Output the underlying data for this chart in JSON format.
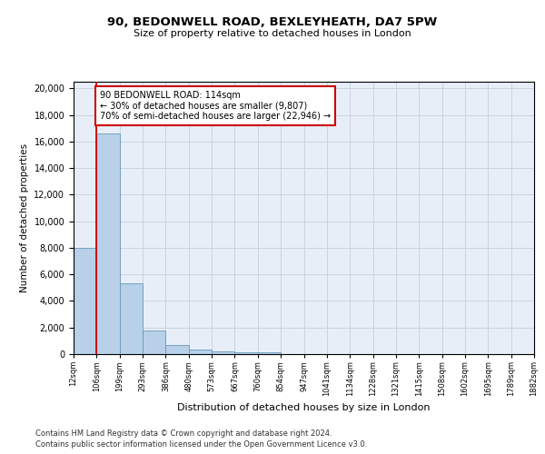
{
  "title_line1": "90, BEDONWELL ROAD, BEXLEYHEATH, DA7 5PW",
  "title_line2": "Size of property relative to detached houses in London",
  "xlabel": "Distribution of detached houses by size in London",
  "ylabel": "Number of detached properties",
  "bar_values": [
    8000,
    16600,
    5300,
    1800,
    650,
    330,
    200,
    160,
    130,
    0,
    0,
    0,
    0,
    0,
    0,
    0,
    0,
    0,
    0,
    0
  ],
  "categories": [
    "12sqm",
    "106sqm",
    "199sqm",
    "293sqm",
    "386sqm",
    "480sqm",
    "573sqm",
    "667sqm",
    "760sqm",
    "854sqm",
    "947sqm",
    "1041sqm",
    "1134sqm",
    "1228sqm",
    "1321sqm",
    "1415sqm",
    "1508sqm",
    "1602sqm",
    "1695sqm",
    "1789sqm",
    "1882sqm"
  ],
  "bar_color": "#b8d0e8",
  "bar_edge_color": "#6699bb",
  "red_line_color": "#cc0000",
  "ann_line1": "90 BEDONWELL ROAD: 114sqm",
  "ann_line2": "← 30% of detached houses are smaller (9,807)",
  "ann_line3": "70% of semi-detached houses are larger (22,946) →",
  "ylim": [
    0,
    20500
  ],
  "yticks": [
    0,
    2000,
    4000,
    6000,
    8000,
    10000,
    12000,
    14000,
    16000,
    18000,
    20000
  ],
  "grid_color": "#c8d4e0",
  "background_color": "#e8eef8",
  "footnote_line1": "Contains HM Land Registry data © Crown copyright and database right 2024.",
  "footnote_line2": "Contains public sector information licensed under the Open Government Licence v3.0."
}
